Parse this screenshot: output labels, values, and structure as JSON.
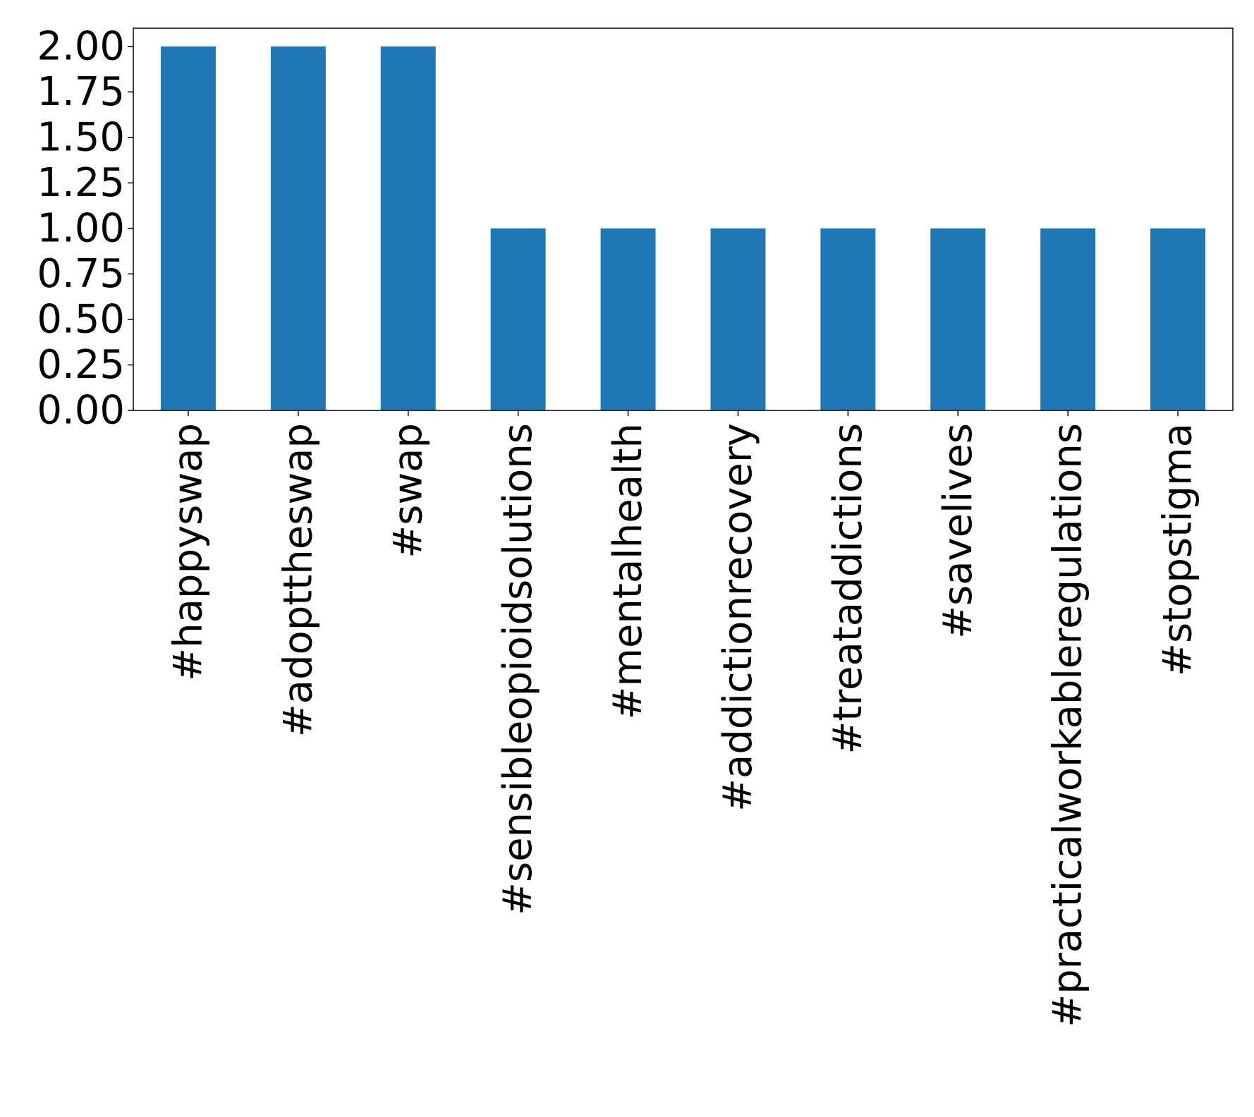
{
  "chart_data": {
    "type": "bar",
    "title": "",
    "xlabel": "",
    "ylabel": "",
    "categories": [
      "#happyswap",
      "#adopttheswap",
      "#swap",
      "#sensibleopioidsolutions",
      "#mentalhealth",
      "#addictionrecovery",
      "#treataddictions",
      "#savelives",
      "#practicalworkableregulations",
      "#stopstigma"
    ],
    "values": [
      2,
      2,
      2,
      1,
      1,
      1,
      1,
      1,
      1,
      1
    ],
    "ylim": [
      0,
      2.1
    ],
    "yticks": [
      0,
      0.25,
      0.5,
      0.75,
      1.0,
      1.25,
      1.5,
      1.75,
      2.0
    ],
    "ytick_labels": [
      "0.00",
      "0.25",
      "0.50",
      "0.75",
      "1.00",
      "1.25",
      "1.50",
      "1.75",
      "2.00"
    ],
    "bar_color": "#1f77b4",
    "grid": false,
    "legend": "none"
  }
}
